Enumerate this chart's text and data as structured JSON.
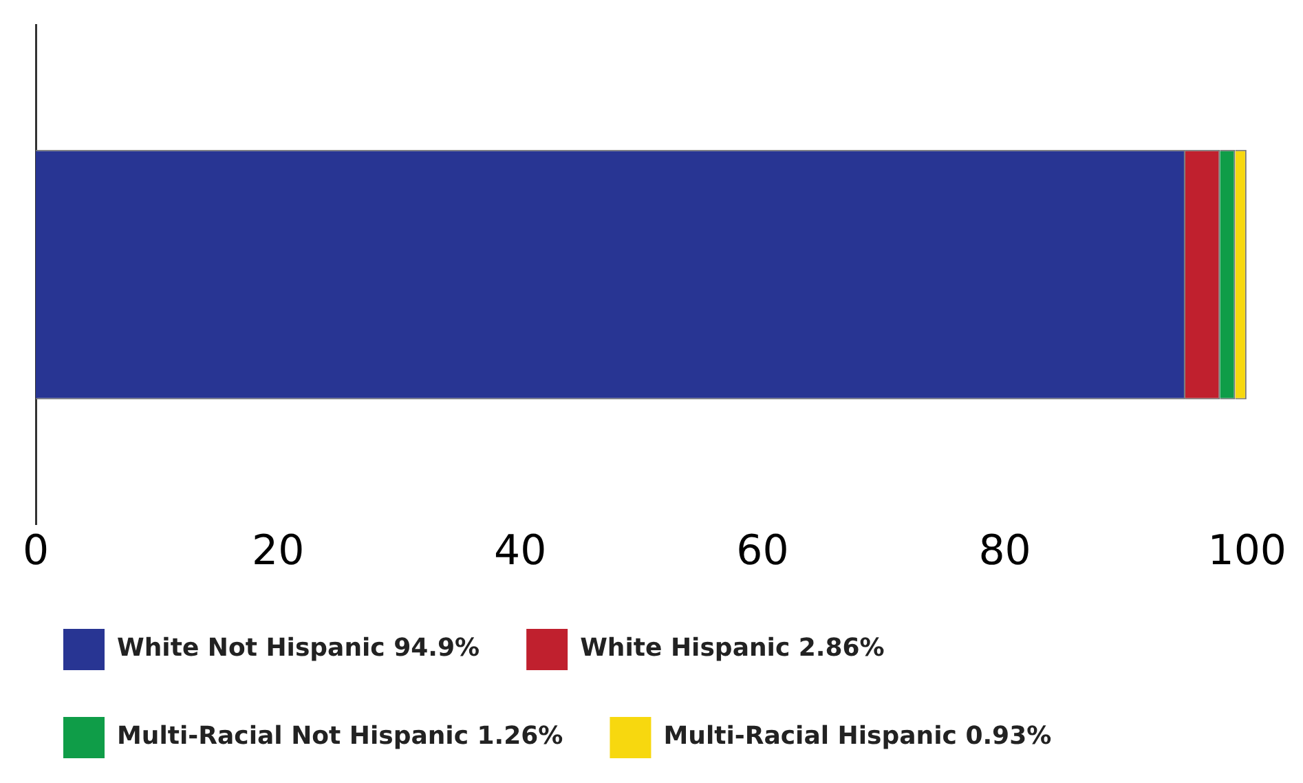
{
  "chart_data": {
    "type": "bar",
    "orientation": "horizontal",
    "stacked": true,
    "categories": [
      null
    ],
    "series": [
      {
        "name": "White Not Hispanic 94.9%",
        "color": "#283593",
        "values": [
          94.9
        ]
      },
      {
        "name": "White Hispanic 2.86%",
        "color": "#c0202e",
        "values": [
          2.86
        ]
      },
      {
        "name": "Multi-Racial Not Hispanic 1.26%",
        "color": "#0f9d48",
        "values": [
          1.26
        ]
      },
      {
        "name": "Multi-Racial Hispanic 0.93%",
        "color": "#f7d80f",
        "values": [
          0.93
        ]
      }
    ],
    "xlim": [
      0,
      100
    ],
    "xticks": [
      0,
      20,
      40,
      60,
      80,
      100
    ],
    "grid": false,
    "legend": "bottom"
  }
}
